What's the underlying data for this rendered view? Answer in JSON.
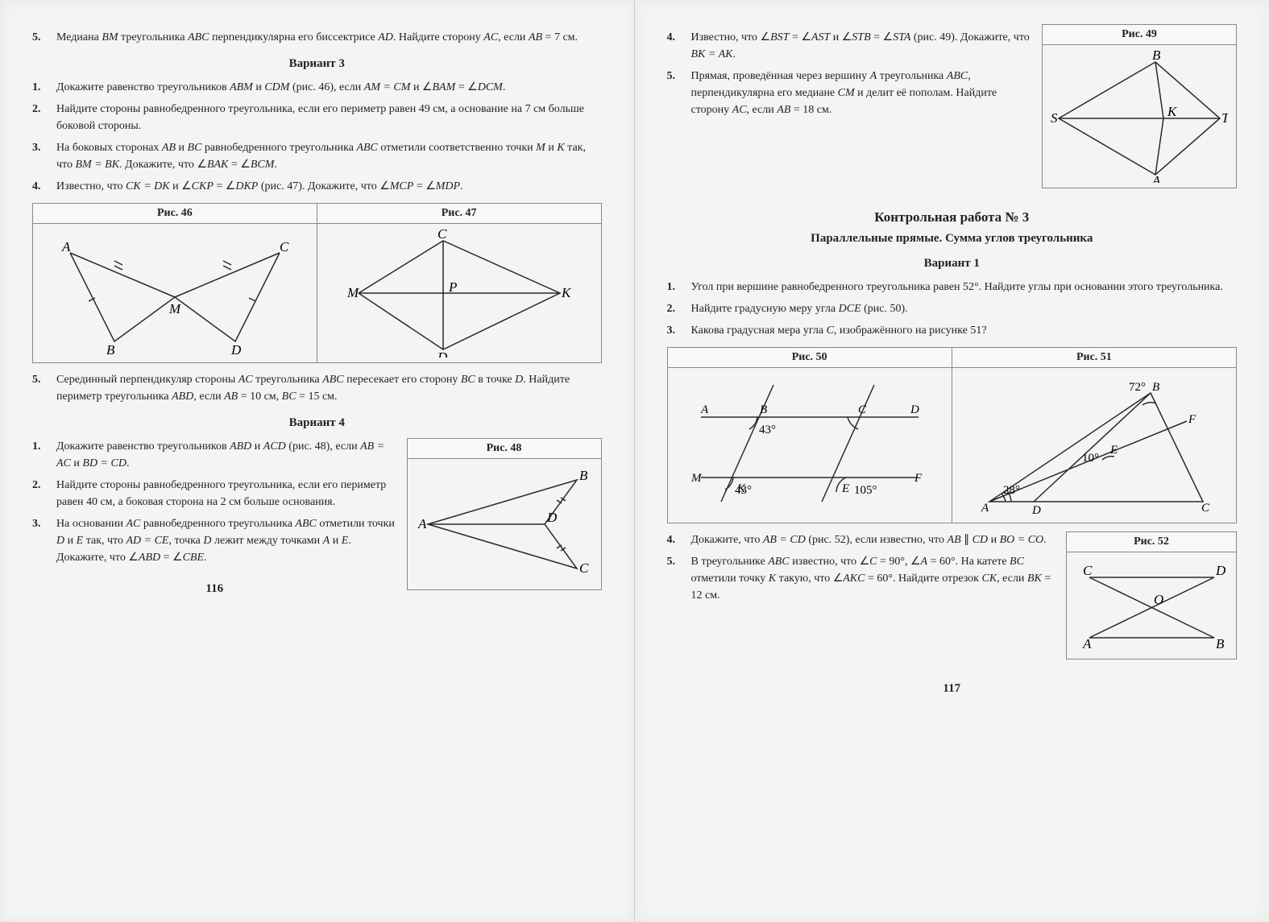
{
  "leftPage": {
    "problems_top": [
      {
        "n": "5.",
        "t": "Медиана <span class='i'>BM</span> треугольника <span class='i'>ABC</span> перпендикулярна его биссектрисе <span class='i'>AD</span>. Найдите сторону <span class='i'>AC</span>, если <span class='i'>AB</span> = 7 см."
      }
    ],
    "variant3_title": "Вариант 3",
    "variant3": [
      {
        "n": "1.",
        "t": "Докажите равенство треугольников <span class='i'>ABM</span> и <span class='i'>CDM</span> (рис. 46), если <span class='i'>AM = CM</span> и ∠<span class='i'>BAM</span> = ∠<span class='i'>DCM</span>."
      },
      {
        "n": "2.",
        "t": "Найдите стороны равнобедренного треугольника, если его периметр равен 49 см, а основание на 7 см больше боковой стороны."
      },
      {
        "n": "3.",
        "t": "На боковых сторонах <span class='i'>AB</span> и <span class='i'>BC</span> равнобедренного треугольника <span class='i'>ABC</span> отметили соответственно точки <span class='i'>M</span> и <span class='i'>K</span> так, что <span class='i'>BM = BK</span>. Докажите, что ∠<span class='i'>BAK</span> = ∠<span class='i'>BCM</span>."
      },
      {
        "n": "4.",
        "t": "Известно, что <span class='i'>CK = DK</span> и ∠<span class='i'>CKP</span> = ∠<span class='i'>DKP</span> (рис. 47). Докажите, что ∠<span class='i'>MCP</span> = ∠<span class='i'>MDP</span>."
      }
    ],
    "fig46": "Рис. 46",
    "fig47": "Рис. 47",
    "prob5_v3": {
      "n": "5.",
      "t": "Серединный перпендикуляр стороны <span class='i'>AC</span> треугольника <span class='i'>ABC</span> пересекает его сторону <span class='i'>BC</span> в точке <span class='i'>D</span>. Найдите периметр треугольника <span class='i'>ABD</span>, если <span class='i'>AB</span> = 10 см, <span class='i'>BC</span> = 15 см."
    },
    "variant4_title": "Вариант 4",
    "fig48": "Рис. 48",
    "variant4": [
      {
        "n": "1.",
        "t": "Докажите равенство треугольников <span class='i'>ABD</span> и <span class='i'>ACD</span> (рис. 48), если <span class='i'>AB = AC</span> и <span class='i'>BD = CD</span>."
      },
      {
        "n": "2.",
        "t": "Найдите стороны равнобедренного треугольника, если его периметр равен 40 см, а боковая сторона на 2 см больше основания."
      },
      {
        "n": "3.",
        "t": "На основании <span class='i'>AC</span> равнобедренного треугольника <span class='i'>ABC</span> отметили точки <span class='i'>D</span> и <span class='i'>E</span> так, что <span class='i'>AD = CE</span>, точка <span class='i'>D</span> лежит между точками <span class='i'>A</span> и <span class='i'>E</span>. Докажите, что ∠<span class='i'>ABD</span> = ∠<span class='i'>CBE</span>."
      }
    ],
    "pagenum": "116"
  },
  "rightPage": {
    "fig49": "Рис. 49",
    "problems_top": [
      {
        "n": "4.",
        "t": "Известно, что ∠<span class='i'>BST</span> = ∠<span class='i'>AST</span> и ∠<span class='i'>STB</span> = ∠<span class='i'>STA</span> (рис. 49). Докажите, что <span class='i'>BK = AK</span>."
      },
      {
        "n": "5.",
        "t": "Прямая, проведённая через вершину <span class='i'>A</span> треугольника <span class='i'>ABC</span>, перпендикулярна его медиане <span class='i'>CM</span> и делит её пополам. Найдите сторону <span class='i'>AC</span>, если <span class='i'>AB</span> = 18 см."
      }
    ],
    "kr_title": "Контрольная работа № 3",
    "kr_sub": "Параллельные прямые. Сумма углов треугольника",
    "variant1_title": "Вариант 1",
    "variant1": [
      {
        "n": "1.",
        "t": "Угол при вершине равнобедренного треугольника равен 52°. Найдите углы при основании этого треугольника."
      },
      {
        "n": "2.",
        "t": "Найдите градусную меру угла <span class='i'>DCE</span> (рис. 50)."
      },
      {
        "n": "3.",
        "t": "Какова градусная мера угла <span class='i'>C</span>, изображённого на рисунке 51?"
      }
    ],
    "fig50": "Рис. 50",
    "fig51": "Рис. 51",
    "fig52": "Рис. 52",
    "problems_bot": [
      {
        "n": "4.",
        "t": "Докажите, что <span class='i'>AB = CD</span> (рис. 52), если известно, что <span class='i'>AB</span> ∥ <span class='i'>CD</span> и <span class='i'>BO = CO</span>."
      },
      {
        "n": "5.",
        "t": "В треугольнике <span class='i'>ABC</span> известно, что ∠<span class='i'>C</span> = 90°, ∠<span class='i'>A</span> = 60°. На катете <span class='i'>BC</span> отметили точку <span class='i'>K</span> такую, что ∠<span class='i'>AKC</span> = 60°. Найдите отрезок <span class='i'>CK</span>, если <span class='i'>BK</span> = 12 см."
      }
    ],
    "pagenum": "117",
    "fig50_angles": {
      "a43": "43°",
      "a43b": "43°",
      "a105": "105°"
    },
    "fig51_angles": {
      "a72": "72°",
      "a10": "10°",
      "a28": "28°"
    }
  },
  "colors": {
    "line": "#2a2a2a",
    "text": "#282828"
  }
}
